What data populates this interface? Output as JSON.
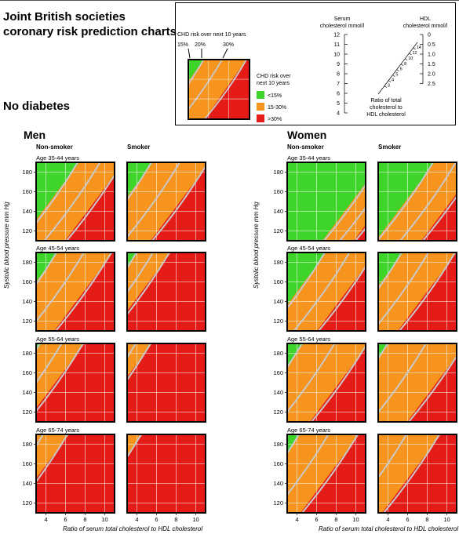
{
  "title_line1": "Joint British societies",
  "title_line2": "coronary risk prediction charts",
  "subtitle": "No diabetes",
  "key": {
    "chd_label": "CHD risk over next 10 years",
    "pct15": "15%",
    "pct20": "20%",
    "pct30": "30%",
    "legend_title_1": "CHD risk over",
    "legend_title_2": "next 10 years",
    "legend": [
      {
        "label": "<15%",
        "color": "#3fd42a"
      },
      {
        "label": "15-30%",
        "color": "#f7941d"
      },
      {
        "label": ">30%",
        "color": "#e41b17"
      }
    ],
    "serum_title_1": "Serum",
    "serum_title_2": "cholesterol mmol/l",
    "serum_ticks": [
      "12",
      "11",
      "10",
      "9",
      "8",
      "7",
      "6",
      "5",
      "4"
    ],
    "hdl_title_1": "HDL",
    "hdl_title_2": "cholesterol mmol/l",
    "hdl_ticks": [
      "0",
      "0.5",
      "1.0",
      "1.5",
      "2.0",
      "2.5"
    ],
    "ratio_ticks": [
      "14",
      "12",
      "10",
      "8",
      "6",
      "5",
      "4",
      "3"
    ],
    "ratio_label_1": "Ratio of total",
    "ratio_label_2": "cholesterol to",
    "ratio_label_3": "HDL cholesterol"
  },
  "men": {
    "label": "Men",
    "nonsmoker": "Non-smoker",
    "smoker": "Smoker"
  },
  "women": {
    "label": "Women",
    "nonsmoker": "Non-smoker",
    "smoker": "Smoker"
  },
  "ages": [
    "Age 35-44 years",
    "Age 45-54 years",
    "Age 55-64 years",
    "Age 65-74 years"
  ],
  "y_axis_title": "Systolic blood pressure mm Hg",
  "x_axis_title": "Ratio of serum total cholesterol to HDL cholesterol",
  "chart_data": {
    "type": "heatmap",
    "x_ticks": [
      4,
      6,
      8,
      10
    ],
    "y_ticks": [
      120,
      140,
      160,
      180
    ],
    "xlim": [
      3,
      11
    ],
    "ylim": [
      110,
      190
    ],
    "colors": {
      "low": "#3fd42a",
      "mid": "#f7941d",
      "high": "#e41b17",
      "line": "#c9c9c9"
    },
    "risk_contours": [
      "15%",
      "20%",
      "30%"
    ],
    "panels": {
      "men": {
        "nonsmoker": [
          {
            "age": "35-44",
            "t15": 0.55,
            "t30": 1.12
          },
          {
            "age": "45-54",
            "t15": 0.28,
            "t30": 0.98
          },
          {
            "age": "55-64",
            "t15": 0.07,
            "t30": 0.62
          },
          {
            "age": "65-74",
            "t15": -0.2,
            "t30": 0.42
          }
        ],
        "smoker": [
          {
            "age": "35-44",
            "t15": 0.33,
            "t30": 1.05
          },
          {
            "age": "45-54",
            "t15": 0.14,
            "t30": 0.56
          },
          {
            "age": "55-64",
            "t15": -0.06,
            "t30": 0.32
          },
          {
            "age": "65-74",
            "t15": -0.3,
            "t30": 0.2
          }
        ]
      },
      "women": {
        "nonsmoker": [
          {
            "age": "35-44",
            "t15": 1.2,
            "t30": 1.6
          },
          {
            "age": "45-54",
            "t15": 0.5,
            "t30": 1.13
          },
          {
            "age": "55-64",
            "t15": 0.21,
            "t30": 1.04
          },
          {
            "age": "65-74",
            "t15": 0.17,
            "t30": 0.92
          }
        ],
        "smoker": [
          {
            "age": "35-44",
            "t15": 0.72,
            "t30": 1.3
          },
          {
            "age": "45-54",
            "t15": 0.32,
            "t30": 1.0
          },
          {
            "age": "55-64",
            "t15": 0.14,
            "t30": 1.12
          },
          {
            "age": "65-74",
            "t15": -0.04,
            "t30": 0.8
          }
        ]
      }
    }
  }
}
